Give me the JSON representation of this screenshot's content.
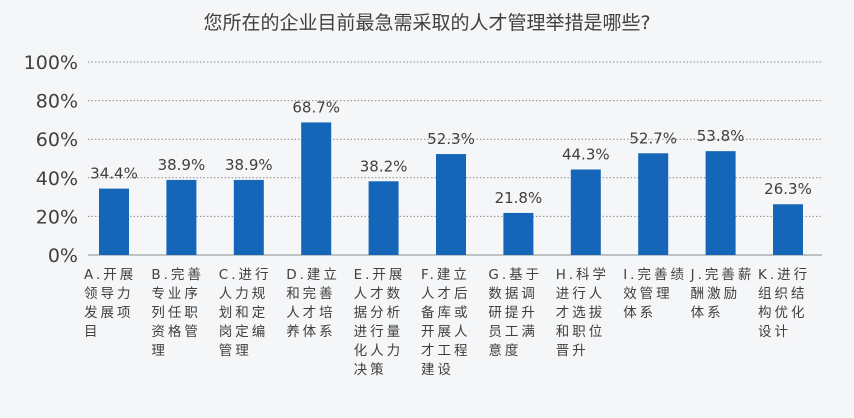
{
  "colors": {
    "bar": "#1565b8",
    "grid": "#8c8c8c",
    "text": "#404040",
    "background": "#f5f6f8"
  },
  "chart_data": {
    "type": "bar",
    "title": "您所在的企业目前最急需采取的人才管理举措是哪些?",
    "xlabel": "",
    "ylabel": "",
    "ylim": [
      0,
      100
    ],
    "yticks": [
      "0%",
      "20%",
      "40%",
      "60%",
      "80%",
      "100%"
    ],
    "grid": true,
    "categories": [
      "A.开展领导力发展项目",
      "B.完善专业序列任职资格管理",
      "C.进行人力规划和定岗定编管理",
      "D.建立和完善人才培养体系",
      "E.开展人才数据分析进行量化人力决策",
      "F.建立人才后备库或开展人才工程建设",
      "G.基于数据调研提升员工满意度",
      "H.科学进行人才选拔和职位晋升",
      "I.完善绩效管理体系",
      "J.完善薪酬激励体系",
      "K.进行组织结构优化设计"
    ],
    "values": [
      34.4,
      38.9,
      38.9,
      68.7,
      38.2,
      52.3,
      21.8,
      44.3,
      52.7,
      53.8,
      26.3
    ],
    "value_labels": [
      "34.4%",
      "38.9%",
      "38.9%",
      "68.7%",
      "38.2%",
      "52.3%",
      "21.8%",
      "44.3%",
      "52.7%",
      "53.8%",
      "26.3%"
    ]
  }
}
